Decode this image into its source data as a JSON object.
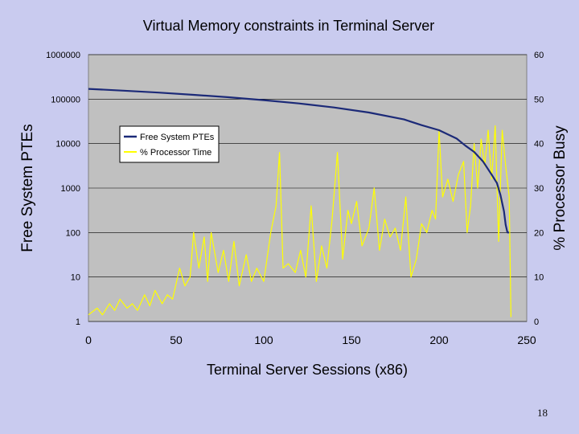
{
  "slide": {
    "page_number": "18"
  },
  "chart_data": {
    "type": "line",
    "title": "Virtual Memory constraints in Terminal Server",
    "xlabel": "Terminal Server Sessions (x86)",
    "ylabel_left": "Free System PTEs",
    "ylabel_right": "% Processor Busy",
    "xlim": [
      0,
      250
    ],
    "x_ticks": [
      "0",
      "50",
      "100",
      "150",
      "200",
      "250"
    ],
    "y_left": {
      "scale": "log",
      "lim": [
        1,
        1000000
      ],
      "ticks": [
        "1",
        "10",
        "100",
        "1000",
        "10000",
        "100000",
        "1000000"
      ]
    },
    "y_right": {
      "scale": "linear",
      "lim": [
        0,
        60
      ],
      "ticks": [
        "0",
        "10",
        "20",
        "30",
        "40",
        "50",
        "60"
      ]
    },
    "grid": "horizontal",
    "legend_position": "upper-left",
    "plot_background": "#c0c0c0",
    "series": [
      {
        "name": "Free System PTEs",
        "axis": "left",
        "color": "#1c2a78",
        "x": [
          0,
          20,
          40,
          60,
          80,
          100,
          120,
          140,
          160,
          180,
          190,
          200,
          210,
          215,
          220,
          225,
          230,
          233,
          235,
          237,
          238,
          239,
          240
        ],
        "y": [
          170000,
          155000,
          140000,
          125000,
          110000,
          95000,
          80000,
          65000,
          50000,
          35000,
          26000,
          20000,
          13000,
          9000,
          6500,
          4000,
          2000,
          1300,
          700,
          300,
          150,
          100,
          100
        ]
      },
      {
        "name": "% Processor Time",
        "axis": "right",
        "color": "#ffff00",
        "x": [
          0,
          5,
          8,
          12,
          15,
          18,
          22,
          25,
          28,
          32,
          35,
          38,
          42,
          45,
          48,
          52,
          55,
          58,
          60,
          63,
          66,
          68,
          70,
          74,
          77,
          80,
          83,
          86,
          90,
          93,
          96,
          100,
          104,
          107,
          109,
          111,
          114,
          118,
          121,
          124,
          127,
          130,
          133,
          136,
          139,
          142,
          145,
          148,
          150,
          153,
          156,
          160,
          163,
          166,
          169,
          172,
          175,
          178,
          181,
          184,
          187,
          190,
          193,
          196,
          198,
          200,
          202,
          205,
          208,
          211,
          214,
          216,
          218,
          220,
          222,
          224,
          226,
          228,
          230,
          232,
          234,
          236,
          238,
          240,
          241
        ],
        "y": [
          1.5,
          3,
          1.5,
          4,
          2.5,
          5,
          3,
          4,
          2.5,
          6,
          3.5,
          7,
          4,
          6,
          5,
          12,
          8,
          10,
          20,
          12,
          19,
          9,
          20,
          11,
          16,
          9,
          18,
          8,
          15,
          9,
          12,
          9,
          20,
          26,
          38,
          12,
          13,
          11,
          16,
          10,
          26,
          9,
          17,
          12,
          23,
          38,
          14,
          25,
          22,
          27,
          17,
          21,
          30,
          16,
          23,
          19,
          21,
          16,
          28,
          10,
          14,
          22,
          20,
          25,
          23,
          43,
          28,
          32,
          27,
          33,
          36,
          20,
          26,
          40,
          30,
          41,
          35,
          43,
          32,
          44,
          18,
          43,
          35,
          28,
          1
        ]
      }
    ]
  }
}
